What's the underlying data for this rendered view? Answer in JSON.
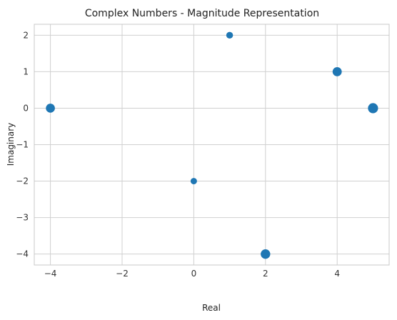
{
  "chart_data": {
    "type": "scatter",
    "title": "Complex Numbers - Magnitude Representation",
    "xlabel": "Real",
    "ylabel": "Imaginary",
    "xlim": [
      -4.45,
      5.45
    ],
    "ylim": [
      -4.3,
      2.3
    ],
    "xticks": [
      -4,
      -2,
      0,
      2,
      4
    ],
    "xtick_labels": [
      "−4",
      "−2",
      "0",
      "2",
      "4"
    ],
    "yticks": [
      -4,
      -3,
      -2,
      -1,
      0,
      1,
      2
    ],
    "ytick_labels": [
      "−4",
      "−3",
      "−2",
      "−1",
      "0",
      "1",
      "2"
    ],
    "grid": true,
    "marker_color": "#1f77b4",
    "points": [
      {
        "x": 1,
        "y": 2,
        "magnitude": 2.24
      },
      {
        "x": 4,
        "y": 1,
        "magnitude": 4.12
      },
      {
        "x": 5,
        "y": 0,
        "magnitude": 5.0
      },
      {
        "x": -4,
        "y": 0,
        "magnitude": 4.0
      },
      {
        "x": 0,
        "y": -2,
        "magnitude": 2.0
      },
      {
        "x": 2,
        "y": -4,
        "magnitude": 4.47
      }
    ]
  }
}
